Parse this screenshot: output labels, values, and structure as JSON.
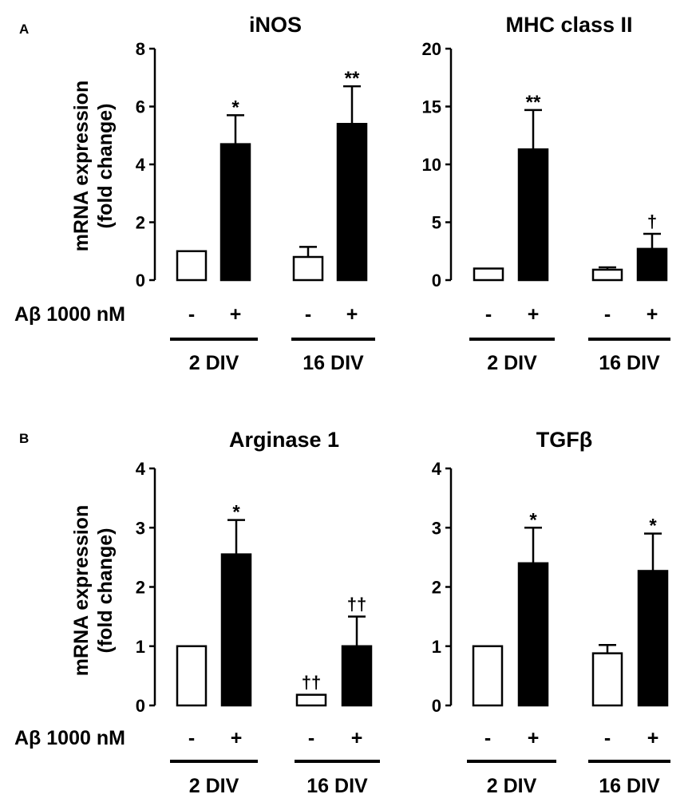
{
  "panels": [
    {
      "label": "A",
      "y_axis_label_line1": "mRNA expression",
      "y_axis_label_line2": "(fold change)",
      "treatment_label": "Aβ 1000 nM"
    },
    {
      "label": "B",
      "y_axis_label_line1": "mRNA expression",
      "y_axis_label_line2": "(fold change)",
      "treatment_label": "Aβ 1000 nM"
    }
  ],
  "chart_data": [
    {
      "type": "bar",
      "panel": "A",
      "title": "iNOS",
      "ylim": [
        0,
        8
      ],
      "yticks": [
        "0",
        "2",
        "4",
        "6",
        "8"
      ],
      "ytick_values": [
        0,
        2,
        4,
        6,
        8
      ],
      "ylabel": "mRNA expression (fold change)",
      "treatment_symbols": [
        "-",
        "+",
        "-",
        "+"
      ],
      "groups": [
        "2 DIV",
        "16 DIV"
      ],
      "bars": [
        {
          "group": "2 DIV",
          "treatment": "-",
          "fill": "white",
          "value": 1.0,
          "error": 0,
          "annotation": ""
        },
        {
          "group": "2 DIV",
          "treatment": "+",
          "fill": "black",
          "value": 4.7,
          "error": 1.0,
          "annotation": "*"
        },
        {
          "group": "16 DIV",
          "treatment": "-",
          "fill": "white",
          "value": 0.8,
          "error": 0.35,
          "annotation": ""
        },
        {
          "group": "16 DIV",
          "treatment": "+",
          "fill": "black",
          "value": 5.4,
          "error": 1.3,
          "annotation": "**"
        }
      ]
    },
    {
      "type": "bar",
      "panel": "A",
      "title": "MHC class II",
      "ylim": [
        0,
        20
      ],
      "yticks": [
        "0",
        "5",
        "10",
        "15",
        "20"
      ],
      "ytick_values": [
        0,
        5,
        10,
        15,
        20
      ],
      "ylabel": "",
      "treatment_symbols": [
        "-",
        "+",
        "-",
        "+"
      ],
      "groups": [
        "2 DIV",
        "16 DIV"
      ],
      "bars": [
        {
          "group": "2 DIV",
          "treatment": "-",
          "fill": "white",
          "value": 1.0,
          "error": 0,
          "annotation": ""
        },
        {
          "group": "2 DIV",
          "treatment": "+",
          "fill": "black",
          "value": 11.3,
          "error": 3.4,
          "annotation": "**"
        },
        {
          "group": "16 DIV",
          "treatment": "-",
          "fill": "white",
          "value": 0.9,
          "error": 0.2,
          "annotation": ""
        },
        {
          "group": "16 DIV",
          "treatment": "+",
          "fill": "black",
          "value": 2.7,
          "error": 1.3,
          "annotation": "†"
        }
      ]
    },
    {
      "type": "bar",
      "panel": "B",
      "title": "Arginase 1",
      "ylim": [
        0,
        4
      ],
      "yticks": [
        "0",
        "1",
        "2",
        "3",
        "4"
      ],
      "ytick_values": [
        0,
        1,
        2,
        3,
        4
      ],
      "ylabel": "mRNA expression (fold change)",
      "treatment_symbols": [
        "-",
        "+",
        "-",
        "+"
      ],
      "groups": [
        "2 DIV",
        "16 DIV"
      ],
      "bars": [
        {
          "group": "2 DIV",
          "treatment": "-",
          "fill": "white",
          "value": 1.0,
          "error": 0,
          "annotation": ""
        },
        {
          "group": "2 DIV",
          "treatment": "+",
          "fill": "black",
          "value": 2.55,
          "error": 0.58,
          "annotation": "*"
        },
        {
          "group": "16 DIV",
          "treatment": "-",
          "fill": "white",
          "value": 0.18,
          "error": 0,
          "annotation": "††"
        },
        {
          "group": "16 DIV",
          "treatment": "+",
          "fill": "black",
          "value": 1.0,
          "error": 0.5,
          "annotation": "††"
        }
      ]
    },
    {
      "type": "bar",
      "panel": "B",
      "title": "TGFβ",
      "ylim": [
        0,
        4
      ],
      "yticks": [
        "0",
        "1",
        "2",
        "3",
        "4"
      ],
      "ytick_values": [
        0,
        1,
        2,
        3,
        4
      ],
      "ylabel": "",
      "treatment_symbols": [
        "-",
        "+",
        "-",
        "+"
      ],
      "groups": [
        "2 DIV",
        "16 DIV"
      ],
      "bars": [
        {
          "group": "2 DIV",
          "treatment": "-",
          "fill": "white",
          "value": 1.0,
          "error": 0,
          "annotation": ""
        },
        {
          "group": "2 DIV",
          "treatment": "+",
          "fill": "black",
          "value": 2.4,
          "error": 0.6,
          "annotation": "*"
        },
        {
          "group": "16 DIV",
          "treatment": "-",
          "fill": "white",
          "value": 0.88,
          "error": 0.14,
          "annotation": ""
        },
        {
          "group": "16 DIV",
          "treatment": "+",
          "fill": "black",
          "value": 2.27,
          "error": 0.63,
          "annotation": "*"
        }
      ]
    }
  ]
}
